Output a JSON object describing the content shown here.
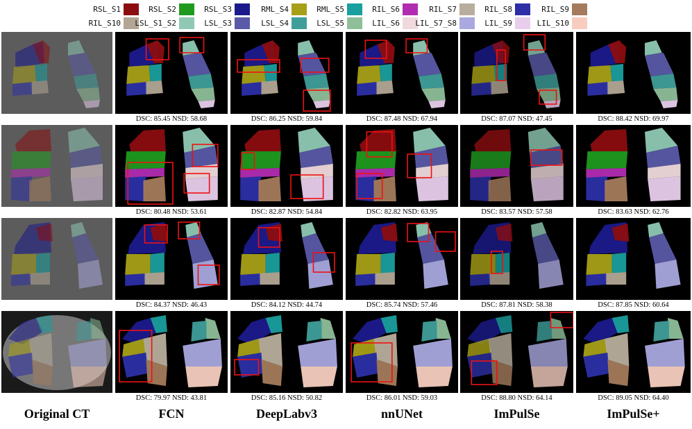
{
  "legend": [
    {
      "label": "RSL_S1",
      "color": "#8b0d10"
    },
    {
      "label": "RSL_S2",
      "color": "#1f9a1f"
    },
    {
      "label": "RSL_S3",
      "color": "#1b1a8c"
    },
    {
      "label": "RML_S4",
      "color": "#a7a017"
    },
    {
      "label": "RML_S5",
      "color": "#1a9e9e"
    },
    {
      "label": "RIL_S6",
      "color": "#b22cb2"
    },
    {
      "label": "RIL_S7",
      "color": "#b8ae9d"
    },
    {
      "label": "RIL_S8",
      "color": "#2c2fa6"
    },
    {
      "label": "RIL_S9",
      "color": "#a47b5c"
    },
    {
      "label": "RIL_S10",
      "color": "#b3a695"
    },
    {
      "label": "LSL_S1_S2",
      "color": "#8fc9b4"
    },
    {
      "label": "LSL_S3",
      "color": "#5a5aa8"
    },
    {
      "label": "LSL_S4",
      "color": "#3f9e9a"
    },
    {
      "label": "LSL_S5",
      "color": "#8fbf99"
    },
    {
      "label": "LIL_S6",
      "color": "#efd9dc"
    },
    {
      "label": "LIL_S7_S8",
      "color": "#a9a8df"
    },
    {
      "label": "LIL_S9",
      "color": "#e8cdec"
    },
    {
      "label": "LIL_S10",
      "color": "#f6cdbf"
    }
  ],
  "columns": [
    "Original CT",
    "FCN",
    "DeepLabv3",
    "nnUNet",
    "ImPulSe",
    "ImPulSe+"
  ],
  "rows": [
    {
      "view": "coronal-front",
      "metrics": [
        "DSC: 85.45 NSD: 58.68",
        "DSC: 86.25 NSD: 59.84",
        "DSC: 87.48 NSD: 67.94",
        "DSC: 87.07 NSD: 47.45",
        "DSC: 88.42 NSD: 69.97"
      ]
    },
    {
      "view": "coronal-back",
      "metrics": [
        "DSC: 80.48 NSD: 53.61",
        "DSC: 82.87 NSD: 54.84",
        "DSC: 82.82 NSD: 63.95",
        "DSC: 83.57 NSD: 57.58",
        "DSC: 83.63 NSD: 62.76"
      ]
    },
    {
      "view": "coronal-mid",
      "metrics": [
        "DSC: 84.37 NSD: 46.43",
        "DSC: 84.12 NSD: 44.74",
        "DSC: 85.74 NSD: 57.46",
        "DSC: 87.81 NSD: 58.38",
        "DSC: 87.85 NSD: 60.64"
      ]
    },
    {
      "view": "axial",
      "metrics": [
        "DSC: 79.97 NSD: 43.81",
        "DSC: 85.16 NSD: 50.82",
        "DSC: 86.01 NSD: 59.03",
        "DSC: 88.80 NSD: 64.14",
        "DSC: 89.05 NSD: 64.40"
      ]
    }
  ]
}
